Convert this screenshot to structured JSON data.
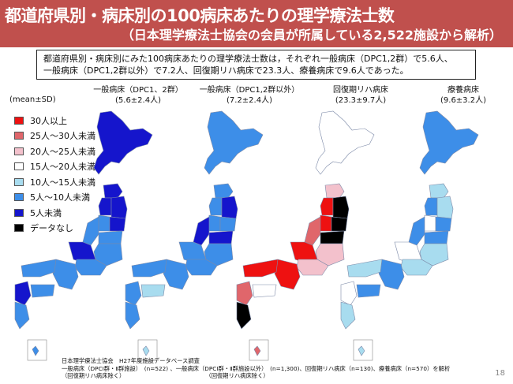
{
  "slide": {
    "title": "都道府県別・病床別の100病床あたりの理学療法士数",
    "subtitle": "（日本理学療法士協会の会員が所属している2,522施設から解析）",
    "summary_lines": [
      "都道府県別・病床別にみた100病床あたりの理学療法士数は，それぞれ一般病床（DPC1,2群）で5.6人、",
      "一般病床（DPC1,2群以外）で7.2人、回復期リハ病床で23.3人、療養病床で9.6人であった。"
    ],
    "mean_sd_label": "(mean±SD)",
    "page_number": "18"
  },
  "legend": [
    {
      "label": "30人以上",
      "color": "#ee1111"
    },
    {
      "label": "25人～30人未満",
      "color": "#e0666b"
    },
    {
      "label": "20人～25人未満",
      "color": "#f3c1cc"
    },
    {
      "label": "15人～20人未満",
      "color": "#ffffff"
    },
    {
      "label": "10人～15人未満",
      "color": "#a8dcef"
    },
    {
      "label": "5人～10人未満",
      "color": "#3d8ee8"
    },
    {
      "label": "5人未満",
      "color": "#1515cc"
    },
    {
      "label": "データなし",
      "color": "#000000"
    }
  ],
  "maps": [
    {
      "name": "一般病床（DPC1、2群）",
      "value": "(5.6±2.4人)",
      "theme": "dpc12"
    },
    {
      "name": "一般病床（DPC1,2群以外）",
      "value": "(7.2±2.4人)",
      "theme": "general"
    },
    {
      "name": "回復期リハ病床",
      "value": "(23.3±9.7人)",
      "theme": "rehab"
    },
    {
      "name": "療養病床",
      "value": "(9.6±3.2人)",
      "theme": "ryoyo"
    }
  ],
  "footer": {
    "line1": "日本理学療法士協会　H27年度施設データベース調査",
    "line2": "一般病床（DPCⅠ群・Ⅱ群施設）　(n=522) 、一般病床（DPCⅠ群・Ⅱ群施設以外）　(n=1,300)、回復期リハ病床（n=130)、療養病床（n=570）を解析",
    "line3": "（回復期リハ病床除く）　　　　　　　　　　　　　　　（回復期リハ病床除く）"
  }
}
